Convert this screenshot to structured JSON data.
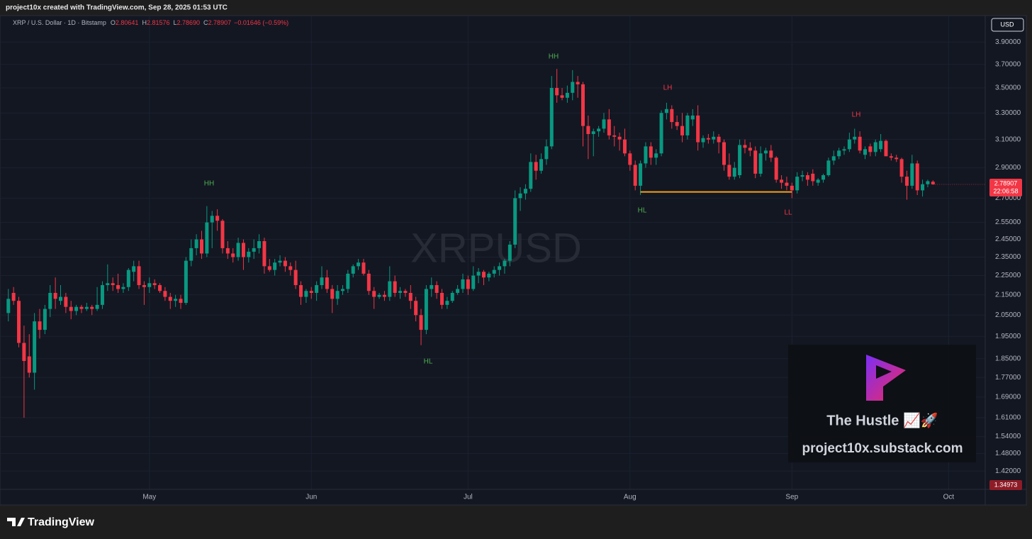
{
  "header": {
    "caption": "project10x created with TradingView.com, Sep 28, 2025 01:53 UTC"
  },
  "chart_data": {
    "type": "candlestick",
    "symbol": "XRP / U.S. Dollar · 1D · Bitstamp",
    "ohlc_legend": [
      {
        "label": "O",
        "value": "2.80641"
      },
      {
        "label": "H",
        "value": "2.81576"
      },
      {
        "label": "L",
        "value": "2.78690"
      },
      {
        "label": "C",
        "value": "2.78907"
      }
    ],
    "change": "−0.01646 (−0.59%)",
    "watermark": "XRPUSD",
    "currency": "USD",
    "up_color": "#089981",
    "down_color": "#f23645",
    "open": [
      2.06,
      2.16,
      2.12,
      1.92,
      1.86,
      1.79,
      2.02,
      1.98,
      2.08,
      2.16,
      2.12,
      2.14,
      2.09,
      2.07,
      2.09,
      2.08,
      2.09,
      2.08,
      2.1,
      2.2,
      2.21,
      2.2,
      2.18,
      2.19,
      2.27,
      2.3,
      2.2,
      2.19,
      2.21,
      2.2,
      2.17,
      2.14,
      2.12,
      2.13,
      2.11,
      2.33,
      2.4,
      2.45,
      2.37,
      2.55,
      2.59,
      2.56,
      2.4,
      2.37,
      2.35,
      2.43,
      2.35,
      2.38,
      2.4,
      2.44,
      2.3,
      2.28,
      2.32,
      2.33,
      2.3,
      2.28,
      2.2,
      2.14,
      2.17,
      2.16,
      2.2,
      2.24,
      2.18,
      2.13,
      2.17,
      2.18,
      2.26,
      2.3,
      2.32,
      2.26,
      2.17,
      2.14,
      2.15,
      2.14,
      2.22,
      2.16,
      2.17,
      2.16,
      2.12,
      2.05,
      1.98,
      2.18,
      2.2,
      2.16,
      2.1,
      2.12,
      2.16,
      2.18,
      2.23,
      2.18,
      2.25,
      2.27,
      2.24,
      2.26,
      2.28,
      2.3,
      2.33,
      2.42,
      2.7,
      2.73,
      2.76,
      2.94,
      2.88,
      2.96,
      3.05,
      3.5,
      3.44,
      3.42,
      3.46,
      3.55,
      3.53,
      3.2,
      3.14,
      3.16,
      3.18,
      3.25,
      3.13,
      3.12,
      3.1,
      3.0,
      2.92,
      2.78,
      2.93,
      3.05,
      2.97,
      3.0,
      3.3,
      3.33,
      3.23,
      3.2,
      3.13,
      3.25,
      3.28,
      3.08,
      3.11,
      3.1,
      3.12,
      3.08,
      2.92,
      2.84,
      2.85,
      3.06,
      3.04,
      3.02,
      2.86,
      3.0,
      3.02,
      2.97,
      2.82,
      2.8,
      2.78,
      2.75,
      2.84,
      2.85,
      2.86,
      2.8,
      2.82,
      2.85,
      2.95,
      2.98,
      3.02,
      3.03,
      3.1,
      3.12,
      2.99,
      3.05,
      3.01,
      3.03,
      3.09,
      2.98,
      2.97,
      2.96,
      2.84,
      2.78,
      2.93,
      2.75,
      2.79,
      2.80641
    ],
    "high": [
      2.18,
      2.19,
      2.14,
      2.0,
      1.96,
      2.06,
      2.08,
      2.1,
      2.2,
      2.24,
      2.2,
      2.16,
      2.12,
      2.1,
      2.1,
      2.11,
      2.1,
      2.19,
      2.22,
      2.31,
      2.24,
      2.26,
      2.21,
      2.29,
      2.33,
      2.33,
      2.22,
      2.24,
      2.23,
      2.21,
      2.19,
      2.16,
      2.15,
      2.15,
      2.35,
      2.45,
      2.48,
      2.5,
      2.65,
      2.62,
      2.63,
      2.57,
      2.44,
      2.4,
      2.46,
      2.45,
      2.4,
      2.45,
      2.48,
      2.46,
      2.34,
      2.34,
      2.36,
      2.35,
      2.32,
      2.33,
      2.22,
      2.18,
      2.19,
      2.22,
      2.3,
      2.28,
      2.2,
      2.2,
      2.2,
      2.28,
      2.31,
      2.34,
      2.34,
      2.28,
      2.19,
      2.16,
      2.17,
      2.3,
      2.25,
      2.19,
      2.18,
      2.2,
      2.14,
      2.08,
      2.2,
      2.24,
      2.22,
      2.18,
      2.14,
      2.17,
      2.2,
      2.26,
      2.25,
      2.3,
      2.29,
      2.28,
      2.27,
      2.3,
      2.32,
      2.34,
      2.44,
      2.75,
      2.77,
      2.79,
      3.0,
      2.99,
      3.0,
      3.1,
      3.6,
      3.66,
      3.5,
      3.52,
      3.65,
      3.6,
      3.55,
      3.28,
      3.18,
      3.2,
      3.3,
      3.33,
      3.2,
      3.15,
      3.18,
      3.02,
      2.95,
      2.95,
      3.08,
      3.08,
      3.03,
      3.32,
      3.38,
      3.36,
      3.28,
      3.3,
      3.3,
      3.33,
      3.36,
      3.13,
      3.14,
      3.16,
      3.14,
      3.1,
      3.0,
      2.94,
      3.1,
      3.1,
      3.08,
      3.05,
      3.05,
      3.04,
      3.06,
      2.98,
      2.85,
      2.84,
      2.8,
      2.87,
      2.88,
      2.87,
      2.89,
      2.83,
      2.86,
      2.97,
      3.02,
      3.04,
      3.05,
      3.15,
      3.18,
      3.16,
      3.05,
      3.07,
      3.1,
      3.14,
      3.1,
      3.0,
      2.99,
      2.97,
      2.88,
      2.99,
      2.95,
      2.82,
      2.82,
      2.81576
    ],
    "low": [
      2.02,
      2.1,
      1.9,
      1.61,
      1.77,
      1.72,
      1.94,
      1.96,
      2.04,
      2.08,
      2.1,
      2.06,
      2.03,
      2.05,
      2.06,
      2.07,
      2.05,
      2.07,
      2.08,
      2.17,
      2.17,
      2.16,
      2.16,
      2.17,
      2.22,
      2.18,
      2.1,
      2.16,
      2.18,
      2.16,
      2.12,
      2.08,
      2.09,
      2.08,
      2.1,
      2.3,
      2.36,
      2.34,
      2.35,
      2.4,
      2.5,
      2.37,
      2.34,
      2.32,
      2.33,
      2.28,
      2.32,
      2.34,
      2.37,
      2.26,
      2.27,
      2.25,
      2.3,
      2.27,
      2.25,
      2.18,
      2.1,
      2.11,
      2.13,
      2.12,
      2.18,
      2.16,
      2.06,
      2.1,
      2.15,
      2.16,
      2.24,
      2.28,
      2.25,
      2.15,
      2.08,
      2.13,
      2.12,
      2.12,
      2.14,
      2.13,
      2.14,
      2.08,
      2.02,
      1.91,
      1.96,
      2.14,
      2.13,
      2.08,
      2.08,
      2.11,
      2.15,
      2.16,
      2.15,
      2.17,
      2.21,
      2.2,
      2.22,
      2.24,
      2.25,
      2.26,
      2.3,
      2.4,
      2.62,
      2.69,
      2.74,
      2.82,
      2.86,
      2.92,
      3.03,
      3.38,
      3.4,
      3.38,
      3.4,
      3.42,
      3.05,
      2.96,
      2.98,
      3.12,
      3.15,
      3.1,
      3.05,
      3.02,
      2.98,
      2.88,
      2.75,
      2.72,
      2.9,
      2.92,
      2.92,
      2.98,
      3.25,
      3.18,
      3.17,
      3.08,
      3.1,
      3.2,
      3.02,
      3.04,
      3.07,
      3.07,
      3.0,
      2.88,
      2.82,
      2.82,
      2.83,
      3.0,
      2.98,
      2.83,
      2.84,
      2.95,
      2.94,
      2.8,
      2.76,
      2.75,
      2.7,
      2.73,
      2.81,
      2.78,
      2.78,
      2.78,
      2.8,
      2.84,
      2.92,
      2.96,
      2.99,
      3.01,
      3.07,
      3.0,
      2.96,
      2.98,
      2.98,
      3.01,
      2.98,
      2.95,
      2.94,
      2.8,
      2.69,
      2.76,
      2.72,
      2.71,
      2.77,
      2.7869
    ],
    "close": [
      2.13,
      2.12,
      1.92,
      1.84,
      1.79,
      2.02,
      1.98,
      2.08,
      2.16,
      2.13,
      2.14,
      2.09,
      2.07,
      2.09,
      2.08,
      2.09,
      2.08,
      2.1,
      2.2,
      2.21,
      2.2,
      2.18,
      2.19,
      2.28,
      2.3,
      2.2,
      2.19,
      2.21,
      2.2,
      2.17,
      2.14,
      2.12,
      2.13,
      2.11,
      2.33,
      2.4,
      2.45,
      2.37,
      2.55,
      2.59,
      2.56,
      2.4,
      2.37,
      2.35,
      2.43,
      2.35,
      2.38,
      2.4,
      2.44,
      2.3,
      2.28,
      2.32,
      2.33,
      2.3,
      2.28,
      2.2,
      2.14,
      2.17,
      2.16,
      2.2,
      2.24,
      2.18,
      2.13,
      2.17,
      2.18,
      2.26,
      2.3,
      2.32,
      2.26,
      2.17,
      2.14,
      2.15,
      2.14,
      2.22,
      2.16,
      2.17,
      2.16,
      2.12,
      2.05,
      1.98,
      2.18,
      2.2,
      2.16,
      2.1,
      2.12,
      2.16,
      2.18,
      2.23,
      2.18,
      2.25,
      2.27,
      2.24,
      2.26,
      2.28,
      2.3,
      2.33,
      2.42,
      2.7,
      2.73,
      2.76,
      2.94,
      2.88,
      2.96,
      3.05,
      3.5,
      3.44,
      3.42,
      3.46,
      3.55,
      3.53,
      3.2,
      3.14,
      3.16,
      3.18,
      3.25,
      3.13,
      3.12,
      3.1,
      3.0,
      2.92,
      2.78,
      2.93,
      3.05,
      2.97,
      3.0,
      3.3,
      3.33,
      3.23,
      3.2,
      3.13,
      3.28,
      3.28,
      3.08,
      3.11,
      3.1,
      3.12,
      3.08,
      2.92,
      2.84,
      2.9,
      3.06,
      3.04,
      3.02,
      2.86,
      3.0,
      3.02,
      2.97,
      2.82,
      2.8,
      2.78,
      2.75,
      2.84,
      2.85,
      2.82,
      2.81,
      2.82,
      2.85,
      2.95,
      2.98,
      3.02,
      3.03,
      3.1,
      3.12,
      3.02,
      3.03,
      3.01,
      3.08,
      3.09,
      2.98,
      2.97,
      2.96,
      2.84,
      2.78,
      2.93,
      2.75,
      2.79,
      2.81,
      2.78907
    ],
    "xlim": [
      -1.6,
      187
    ],
    "xticks": [
      {
        "value": 27,
        "label": "May"
      },
      {
        "value": 58,
        "label": "Jun"
      },
      {
        "value": 88,
        "label": "Jul"
      },
      {
        "value": 119,
        "label": "Aug"
      },
      {
        "value": 150,
        "label": "Sep"
      },
      {
        "value": 180,
        "label": "Oct"
      }
    ],
    "ylim": [
      1.36,
      4.15
    ],
    "log_scale": true,
    "grid": true,
    "yticks": [
      {
        "value": 3.9,
        "label": "3.90000"
      },
      {
        "value": 3.7,
        "label": "3.70000"
      },
      {
        "value": 3.5,
        "label": "3.50000"
      },
      {
        "value": 3.3,
        "label": "3.30000"
      },
      {
        "value": 3.1,
        "label": "3.10000"
      },
      {
        "value": 2.9,
        "label": "2.90000"
      },
      {
        "value": 2.7,
        "label": "2.70000"
      },
      {
        "value": 2.55,
        "label": "2.55000"
      },
      {
        "value": 2.45,
        "label": "2.45000"
      },
      {
        "value": 2.35,
        "label": "2.35000"
      },
      {
        "value": 2.25,
        "label": "2.25000"
      },
      {
        "value": 2.15,
        "label": "2.15000"
      },
      {
        "value": 2.05,
        "label": "2.05000"
      },
      {
        "value": 1.95,
        "label": "1.95000"
      },
      {
        "value": 1.85,
        "label": "1.85000"
      },
      {
        "value": 1.77,
        "label": "1.77000"
      },
      {
        "value": 1.69,
        "label": "1.69000"
      },
      {
        "value": 1.61,
        "label": "1.61000"
      },
      {
        "value": 1.54,
        "label": "1.54000"
      },
      {
        "value": 1.48,
        "label": "1.48000"
      },
      {
        "value": 1.42,
        "label": "1.42000"
      }
    ],
    "last_price": {
      "value": 2.78907,
      "countdown": "22:06:58"
    },
    "low_marker": {
      "value": 1.34973
    },
    "support_line": {
      "start": 121,
      "end": 150,
      "value": 2.74,
      "color": "#f7a11a"
    },
    "annotations": [
      {
        "text": "HH",
        "color": "#4caf50"
      },
      {
        "text": "HL",
        "color": "#4caf50"
      },
      {
        "text": "HH",
        "color": "#4caf50"
      },
      {
        "text": "LH",
        "color": "#f23645"
      },
      {
        "text": "HL",
        "color": "#4caf50"
      },
      {
        "text": "LL",
        "color": "#f23645"
      },
      {
        "text": "LH",
        "color": "#f23645"
      }
    ]
  },
  "branding": {
    "title": "The Hustle 📈🚀",
    "url": "project10x.substack.com",
    "footer": "TradingView"
  }
}
